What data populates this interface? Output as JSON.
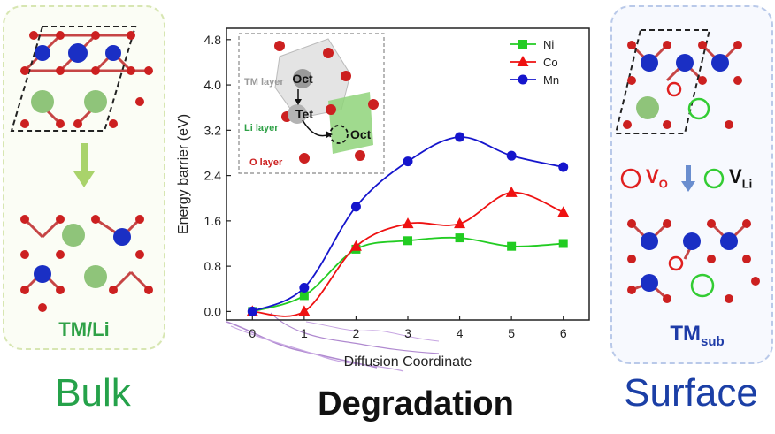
{
  "left_panel": {
    "caption": "TM/Li",
    "heading": "Bulk"
  },
  "right_panel": {
    "caption_main": "TM",
    "caption_sub": "sub",
    "heading": "Surface",
    "vo_main": "V",
    "vo_sub": "O",
    "vli_main": "V",
    "vli_sub": "Li"
  },
  "center": {
    "heading": "Degradation"
  },
  "inset": {
    "tm_layer": "TM layer",
    "li_layer": "Li layer",
    "o_layer": "O layer",
    "oct_top": "Oct",
    "tet": "Tet",
    "oct_bottom": "Oct"
  },
  "colors": {
    "ni": "#22cc22",
    "co": "#ee1111",
    "mn": "#1515cc",
    "bulk_green": "#2fa147",
    "surface_blue": "#1e3ca8",
    "oxygen": "#cc2020",
    "tm_atom": "#1a2fc4",
    "li_atom": "#8fc47a"
  },
  "chart_data": {
    "type": "line",
    "xlabel": "Diffusion Coordinate",
    "ylabel": "Energy barrier (eV)",
    "x": [
      0,
      1,
      2,
      3,
      4,
      5,
      6
    ],
    "xlim": [
      -0.5,
      6.5
    ],
    "ylim": [
      -0.15,
      5.0
    ],
    "yticks": [
      "0.0",
      "0.8",
      "1.6",
      "2.4",
      "3.2",
      "4.0",
      "4.8"
    ],
    "ytick_values": [
      0.0,
      0.8,
      1.6,
      2.4,
      3.2,
      4.0,
      4.8
    ],
    "xticks": [
      "0",
      "1",
      "2",
      "3",
      "4",
      "5",
      "6"
    ],
    "legend_position": "top-right",
    "series": [
      {
        "name": "Ni",
        "marker": "square",
        "color": "#22cc22",
        "values": [
          0.0,
          0.28,
          1.1,
          1.25,
          1.3,
          1.15,
          1.2
        ]
      },
      {
        "name": "Co",
        "marker": "triangle",
        "color": "#ee1111",
        "values": [
          0.0,
          0.0,
          1.15,
          1.55,
          1.55,
          2.1,
          1.75
        ]
      },
      {
        "name": "Mn",
        "marker": "circle",
        "color": "#1515cc",
        "values": [
          0.0,
          0.42,
          1.85,
          2.65,
          3.08,
          2.75,
          2.55
        ]
      }
    ]
  }
}
